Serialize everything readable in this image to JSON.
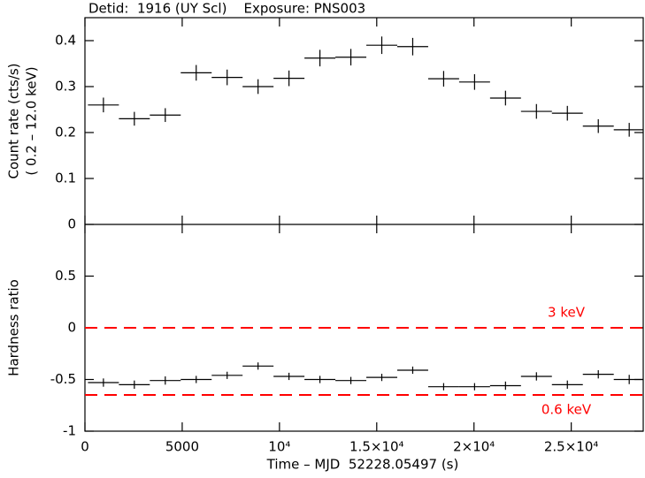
{
  "chart_data": [
    {
      "type": "errorbar",
      "title": "Detid:  1916 (UY Scl)    Exposure: PNS003",
      "ylabel": [
        "Count rate (cts/s)",
        "( 0.2 – 12.0 keV)"
      ],
      "x": [
        950,
        2540,
        4130,
        5720,
        7310,
        8900,
        10490,
        12080,
        13670,
        15260,
        16850,
        18440,
        20030,
        21620,
        23210,
        24800,
        26390,
        27980
      ],
      "xerr": 795,
      "values": [
        0.26,
        0.23,
        0.238,
        0.33,
        0.32,
        0.3,
        0.318,
        0.362,
        0.364,
        0.39,
        0.387,
        0.317,
        0.31,
        0.275,
        0.246,
        0.242,
        0.214,
        0.206
      ],
      "yerr": [
        0.016,
        0.015,
        0.015,
        0.017,
        0.017,
        0.016,
        0.017,
        0.018,
        0.018,
        0.019,
        0.019,
        0.017,
        0.017,
        0.016,
        0.016,
        0.016,
        0.015,
        0.015
      ],
      "color": "#000000",
      "xlim": [
        0,
        28700
      ],
      "xticks": [
        0,
        5000,
        10000,
        15000,
        20000,
        25000
      ],
      "ylim": [
        0,
        0.45
      ],
      "yticks": [
        0,
        0.1,
        0.2,
        0.3,
        0.4
      ]
    },
    {
      "type": "errorbar",
      "ylabel": [
        "Hardness ratio"
      ],
      "xlabel": "Time – MJD  52228.05497 (s)",
      "x": [
        950,
        2540,
        4130,
        5720,
        7310,
        8900,
        10490,
        12080,
        13670,
        15260,
        16850,
        18440,
        20030,
        21620,
        23210,
        24800,
        26390,
        27980
      ],
      "xerr": 795,
      "values": [
        -0.53,
        -0.55,
        -0.51,
        -0.5,
        -0.46,
        -0.37,
        -0.47,
        -0.5,
        -0.51,
        -0.48,
        -0.41,
        -0.57,
        -0.57,
        -0.56,
        -0.47,
        -0.55,
        -0.45,
        -0.5
      ],
      "yerr": [
        0.04,
        0.04,
        0.04,
        0.035,
        0.035,
        0.035,
        0.035,
        0.035,
        0.035,
        0.035,
        0.035,
        0.035,
        0.035,
        0.04,
        0.04,
        0.04,
        0.04,
        0.045
      ],
      "color": "#000000",
      "xlim": [
        0,
        28700
      ],
      "xticks": [
        0,
        5000,
        {
          "value": 10000,
          "label": "10⁴"
        },
        {
          "value": 15000,
          "label": "1.5×10⁴"
        },
        {
          "value": 20000,
          "label": "2×10⁴"
        },
        {
          "value": 25000,
          "label": "2.5×10⁴"
        }
      ],
      "ylim": [
        -1,
        1
      ],
      "yticks": [
        -1,
        -0.5,
        0,
        0.5
      ],
      "hlines": [
        {
          "y": 0,
          "label": "3 keV",
          "color": "#ff0000"
        },
        {
          "y": -0.65,
          "label": "0.6 keV",
          "color": "#ff0000"
        }
      ]
    }
  ]
}
